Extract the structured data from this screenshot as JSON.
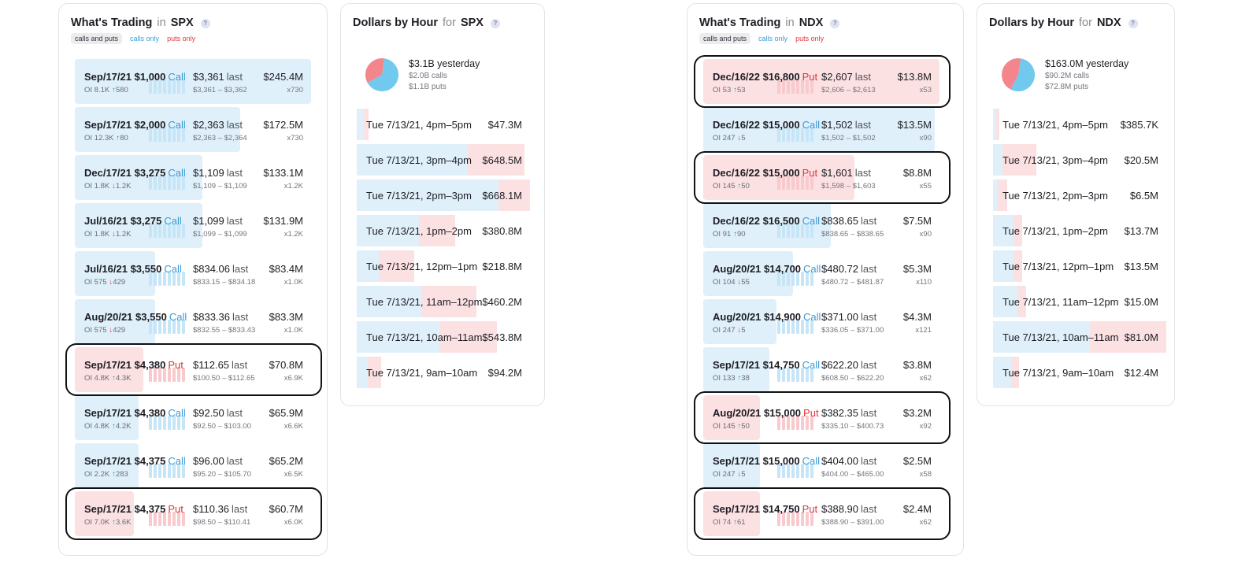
{
  "colors": {
    "call": "#3a9bd5",
    "put": "#e0353b",
    "call_fill": "#dff0fa",
    "put_fill": "#fce1e3",
    "up": "#2aa17a",
    "down": "#d9363e"
  },
  "spx": {
    "trading": {
      "title_main": "What's Trading",
      "title_in": "in",
      "title_symbol": "SPX",
      "help": "?",
      "filters": [
        "calls and puts",
        "calls only",
        "puts only"
      ],
      "rows": [
        {
          "expiry": "Sep/17/21",
          "strike": "$1,000",
          "type": "Call",
          "oi": "OI 8.1K",
          "arrow": "up",
          "change": "580",
          "last": "$3,361",
          "range": "$3,361 – $3,362",
          "amount": "$245.4M",
          "mult": "x730",
          "fill": 1.0
        },
        {
          "expiry": "Sep/17/21",
          "strike": "$2,000",
          "type": "Call",
          "oi": "OI 12.3K",
          "arrow": "up",
          "change": "80",
          "last": "$2,363",
          "range": "$2,363 – $2,364",
          "amount": "$172.5M",
          "mult": "x730",
          "fill": 0.7
        },
        {
          "expiry": "Dec/17/21",
          "strike": "$3,275",
          "type": "Call",
          "oi": "OI 1.8K",
          "arrow": "down",
          "change": "1.2K",
          "last": "$1,109",
          "range": "$1,109 – $1,109",
          "amount": "$133.1M",
          "mult": "x1.2K",
          "fill": 0.54
        },
        {
          "expiry": "Jul/16/21",
          "strike": "$3,275",
          "type": "Call",
          "oi": "OI 1.8K",
          "arrow": "down",
          "change": "1.2K",
          "last": "$1,099",
          "range": "$1,099 – $1,099",
          "amount": "$131.9M",
          "mult": "x1.2K",
          "fill": 0.54
        },
        {
          "expiry": "Jul/16/21",
          "strike": "$3,550",
          "type": "Call",
          "oi": "OI 575",
          "arrow": "down",
          "change": "429",
          "last": "$834.06",
          "range": "$833.15 – $834.18",
          "amount": "$83.4M",
          "mult": "x1.0K",
          "fill": 0.34
        },
        {
          "expiry": "Aug/20/21",
          "strike": "$3,550",
          "type": "Call",
          "oi": "OI 575",
          "arrow": "down",
          "change": "429",
          "last": "$833.36",
          "range": "$832.55 – $833.43",
          "amount": "$83.3M",
          "mult": "x1.0K",
          "fill": 0.34
        },
        {
          "expiry": "Sep/17/21",
          "strike": "$4,380",
          "type": "Put",
          "oi": "OI 4.8K",
          "arrow": "up",
          "change": "4.3K",
          "last": "$112.65",
          "range": "$100.50 – $112.65",
          "amount": "$70.8M",
          "mult": "x6.9K",
          "fill": 0.29
        },
        {
          "expiry": "Sep/17/21",
          "strike": "$4,380",
          "type": "Call",
          "oi": "OI 4.8K",
          "arrow": "up",
          "change": "4.2K",
          "last": "$92.50",
          "range": "$92.50 – $103.00",
          "amount": "$65.9M",
          "mult": "x6.6K",
          "fill": 0.27
        },
        {
          "expiry": "Sep/17/21",
          "strike": "$4,375",
          "type": "Call",
          "oi": "OI 2.2K",
          "arrow": "up",
          "change": "283",
          "last": "$96.00",
          "range": "$95.20 – $105.70",
          "amount": "$65.2M",
          "mult": "x6.5K",
          "fill": 0.27
        },
        {
          "expiry": "Sep/17/21",
          "strike": "$4,375",
          "type": "Put",
          "oi": "OI 7.0K",
          "arrow": "up",
          "change": "3.6K",
          "last": "$110.36",
          "range": "$98.50 – $110.41",
          "amount": "$60.7M",
          "mult": "x6.0K",
          "fill": 0.25
        }
      ],
      "highlighted": [
        6,
        9
      ]
    },
    "hours": {
      "title_main": "Dollars by Hour",
      "title_in": "for",
      "title_symbol": "SPX",
      "help": "?",
      "summary_total": "$3.1B yesterday",
      "summary_calls": "$2.0B calls",
      "summary_puts": "$1.1B puts",
      "pie_calls_fraction": 0.645,
      "rows": [
        {
          "label": "Tue 7/13/21, 4pm–5pm",
          "amount": "$47.3M",
          "total": 0.07,
          "calls": 0.6
        },
        {
          "label": "Tue 7/13/21, 3pm–4pm",
          "amount": "$648.5M",
          "total": 0.97,
          "calls": 0.66
        },
        {
          "label": "Tue 7/13/21, 2pm–3pm",
          "amount": "$668.1M",
          "total": 1.0,
          "calls": 0.82
        },
        {
          "label": "Tue 7/13/21, 1pm–2pm",
          "amount": "$380.8M",
          "total": 0.57,
          "calls": 0.63
        },
        {
          "label": "Tue 7/13/21, 12pm–1pm",
          "amount": "$218.8M",
          "total": 0.33,
          "calls": 0.38
        },
        {
          "label": "Tue 7/13/21, 11am–12pm",
          "amount": "$460.2M",
          "total": 0.69,
          "calls": 0.54
        },
        {
          "label": "Tue 7/13/21, 10am–11am",
          "amount": "$543.8M",
          "total": 0.81,
          "calls": 0.59
        },
        {
          "label": "Tue 7/13/21, 9am–10am",
          "amount": "$94.2M",
          "total": 0.14,
          "calls": 0.45
        }
      ]
    }
  },
  "ndx": {
    "trading": {
      "title_main": "What's Trading",
      "title_in": "in",
      "title_symbol": "NDX",
      "help": "?",
      "filters": [
        "calls and puts",
        "calls only",
        "puts only"
      ],
      "rows": [
        {
          "expiry": "Dec/16/22",
          "strike": "$16,800",
          "type": "Put",
          "oi": "OI 53",
          "arrow": "up",
          "change": "53",
          "last": "$2,607",
          "range": "$2,606 – $2,613",
          "amount": "$13.8M",
          "mult": "x53",
          "fill": 1.0
        },
        {
          "expiry": "Dec/16/22",
          "strike": "$15,000",
          "type": "Call",
          "oi": "OI 247",
          "arrow": "down",
          "change": "5",
          "last": "$1,502",
          "range": "$1,502 – $1,502",
          "amount": "$13.5M",
          "mult": "x90",
          "fill": 0.98
        },
        {
          "expiry": "Dec/16/22",
          "strike": "$15,000",
          "type": "Put",
          "oi": "OI 145",
          "arrow": "up",
          "change": "50",
          "last": "$1,601",
          "range": "$1,598 – $1,603",
          "amount": "$8.8M",
          "mult": "x55",
          "fill": 0.64
        },
        {
          "expiry": "Dec/16/22",
          "strike": "$16,500",
          "type": "Call",
          "oi": "OI 91",
          "arrow": "up",
          "change": "90",
          "last": "$838.65",
          "range": "$838.65 – $838.65",
          "amount": "$7.5M",
          "mult": "x90",
          "fill": 0.54
        },
        {
          "expiry": "Aug/20/21",
          "strike": "$14,700",
          "type": "Call",
          "oi": "OI 104",
          "arrow": "down",
          "change": "55",
          "last": "$480.72",
          "range": "$480.72 – $481.87",
          "amount": "$5.3M",
          "mult": "x110",
          "fill": 0.38
        },
        {
          "expiry": "Aug/20/21",
          "strike": "$14,900",
          "type": "Call",
          "oi": "OI 247",
          "arrow": "down",
          "change": "5",
          "last": "$371.00",
          "range": "$336.05 – $371.00",
          "amount": "$4.3M",
          "mult": "x121",
          "fill": 0.31
        },
        {
          "expiry": "Sep/17/21",
          "strike": "$14,750",
          "type": "Call",
          "oi": "OI 133",
          "arrow": "up",
          "change": "38",
          "last": "$622.20",
          "range": "$608.50 – $622.20",
          "amount": "$3.8M",
          "mult": "x62",
          "fill": 0.28
        },
        {
          "expiry": "Aug/20/21",
          "strike": "$15,000",
          "type": "Put",
          "oi": "OI 145",
          "arrow": "up",
          "change": "50",
          "last": "$382.35",
          "range": "$335.10 – $400.73",
          "amount": "$3.2M",
          "mult": "x92",
          "fill": 0.23
        },
        {
          "expiry": "Sep/17/21",
          "strike": "$15,000",
          "type": "Call",
          "oi": "OI 247",
          "arrow": "down",
          "change": "5",
          "last": "$404.00",
          "range": "$404.00 – $465.00",
          "amount": "$2.5M",
          "mult": "x58",
          "fill": 0.18
        },
        {
          "expiry": "Sep/17/21",
          "strike": "$14,750",
          "type": "Put",
          "oi": "OI 74",
          "arrow": "up",
          "change": "61",
          "last": "$388.90",
          "range": "$388.90 – $391.00",
          "amount": "$2.4M",
          "mult": "x62",
          "fill": 0.17
        }
      ],
      "highlighted": [
        0,
        2,
        7,
        9
      ]
    },
    "hours": {
      "title_main": "Dollars by Hour",
      "title_in": "for",
      "title_symbol": "NDX",
      "help": "?",
      "summary_total": "$163.0M yesterday",
      "summary_calls": "$90.2M calls",
      "summary_puts": "$72.8M puts",
      "pie_calls_fraction": 0.553,
      "rows": [
        {
          "label": "Tue 7/13/21, 4pm–5pm",
          "amount": "$385.7K",
          "total": 0.01,
          "calls": 0.5
        },
        {
          "label": "Tue 7/13/21, 3pm–4pm",
          "amount": "$20.5M",
          "total": 0.25,
          "calls": 0.22
        },
        {
          "label": "Tue 7/13/21, 2pm–3pm",
          "amount": "$6.5M",
          "total": 0.08,
          "calls": 0.3
        },
        {
          "label": "Tue 7/13/21, 1pm–2pm",
          "amount": "$13.7M",
          "total": 0.17,
          "calls": 0.7
        },
        {
          "label": "Tue 7/13/21, 12pm–1pm",
          "amount": "$13.5M",
          "total": 0.17,
          "calls": 0.7
        },
        {
          "label": "Tue 7/13/21, 11am–12pm",
          "amount": "$15.0M",
          "total": 0.19,
          "calls": 0.75
        },
        {
          "label": "Tue 7/13/21, 10am–11am",
          "amount": "$81.0M",
          "total": 1.0,
          "calls": 0.56
        },
        {
          "label": "Tue 7/13/21, 9am–10am",
          "amount": "$12.4M",
          "total": 0.15,
          "calls": 0.7
        }
      ]
    }
  }
}
